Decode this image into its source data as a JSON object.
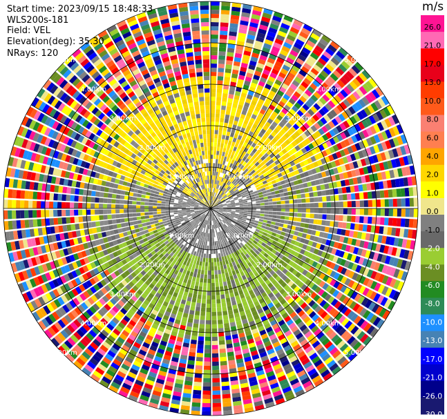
{
  "info": {
    "start_time": "Start time: 2023/09/15 18:48:33",
    "instrument": "WLS200s-181",
    "field": "Field: VEL",
    "elevation": "Elevation(deg): 35.30",
    "nrays": "NRays: 120"
  },
  "chart_data": {
    "type": "heatmap",
    "projection": "polar",
    "field": "VEL",
    "nrays": 120,
    "max_range_km": 5.0,
    "range_rings_km": [
      1.0,
      2.0,
      3.0,
      4.0,
      5.0
    ],
    "ring_labels": [
      "1.00km",
      "2.00km",
      "3.00km",
      "4.00km",
      "5.00km"
    ],
    "colorbar": {
      "unit": "m/s",
      "ticks": [
        "26.0",
        "21.0",
        "17.0",
        "13.0",
        "10.0",
        "8.0",
        "6.0",
        "4.0",
        "2.0",
        "1.0",
        "0.0",
        "-1.0",
        "-2.0",
        "-4.0",
        "-6.0",
        "-8.0",
        "-10.0",
        "-13.0",
        "-17.0",
        "-21.0",
        "-26.0",
        "-30.0"
      ],
      "colors": [
        "#ff1493",
        "#ff69b4",
        "#ff0000",
        "#e8001a",
        "#ff3c00",
        "#ff5a1a",
        "#fa8072",
        "#ff7f50",
        "#ffa500",
        "#ffd700",
        "#ffff00",
        "#f0e68c",
        "#808080",
        "#696969",
        "#9acd32",
        "#6b8e23",
        "#228b22",
        "#2e8b57",
        "#1e90ff",
        "#4682b4",
        "#0000ff",
        "#0000cd",
        "#00008b",
        "#191970"
      ]
    },
    "regions": [
      {
        "name": "near-range gray/mixed",
        "range_km": [
          0,
          1.2
        ]
      },
      {
        "name": "positive (yellow) sector",
        "azimuth_deg": [
          290,
          70
        ],
        "range_km": [
          0.6,
          3.2
        ]
      },
      {
        "name": "negative (green) sector",
        "azimuth_deg": [
          110,
          250
        ],
        "range_km": [
          0.6,
          3.2
        ]
      },
      {
        "name": "noise (random colors)",
        "range_km": [
          3.0,
          5.0
        ]
      }
    ]
  }
}
